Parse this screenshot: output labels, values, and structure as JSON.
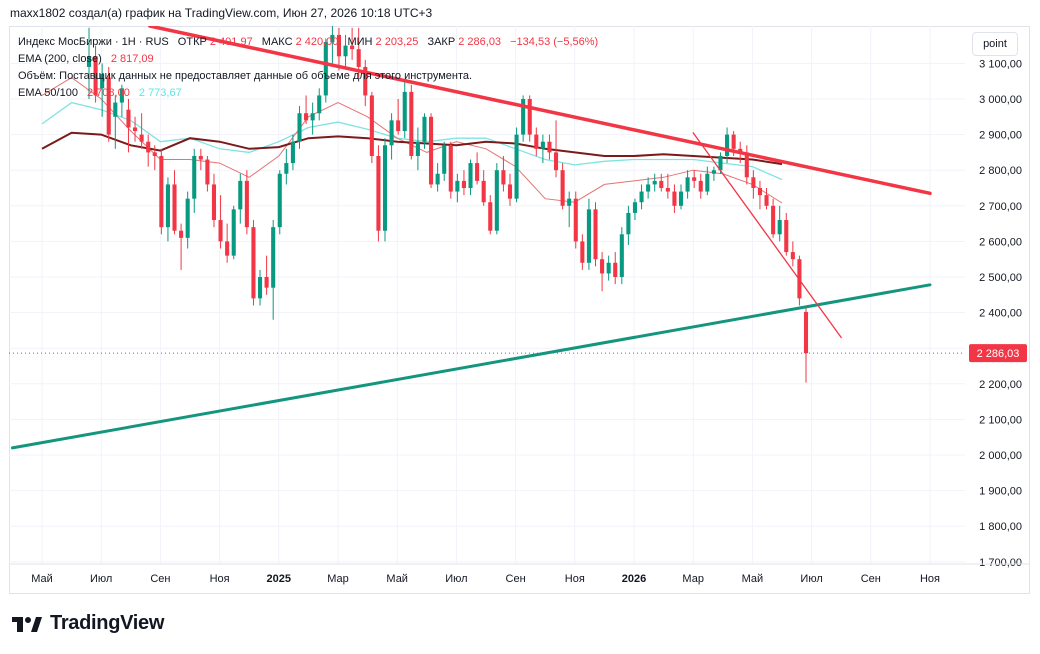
{
  "header": {
    "caption": "maxx1802 создал(а) график на TradingView.com, Июн 27, 2026 10:18 UTC+3"
  },
  "legend": {
    "symbol": "Индекс МосБиржи · 1Н · RUS",
    "open_label": "ОТКР",
    "open_value": "2 401,97",
    "high_label": "МАКС",
    "high_value": "2 420,00",
    "low_label": "МИН",
    "low_value": "2 203,25",
    "close_label": "ЗАКР",
    "close_value": "2 286,03",
    "change": "−134,53 (−5,56%)",
    "ema200_label": "EMA (200, close)",
    "ema200_value": "2 817,09",
    "volume_note": "Объём: Поставщик данных не предоставляет данные об объеме для этого инструмента.",
    "ema50_100_label": "EMA 50/100",
    "ema50_value": "2 708,00",
    "ema100_value": "2 773,67"
  },
  "toolbar": {
    "scale_button": "point"
  },
  "brand": {
    "name": "TradingView"
  },
  "chart_data": {
    "type": "candlestick",
    "y_axis": {
      "range": [
        1680,
        3170
      ],
      "ticks": [
        "1 700,00",
        "1 800,00",
        "1 900,00",
        "2 000,00",
        "2 100,00",
        "2 200,00",
        "2 300,00",
        "2 400,00",
        "2 500,00",
        "2 600,00",
        "2 700,00",
        "2 800,00",
        "2 900,00",
        "3 000,00",
        "3 100,00"
      ],
      "tick_values": [
        1700,
        1800,
        1900,
        2000,
        2100,
        2200,
        2300,
        2400,
        2500,
        2600,
        2700,
        2800,
        2900,
        3000,
        3100
      ]
    },
    "x_axis": {
      "labels": [
        "Май",
        "Июл",
        "Сен",
        "Ноя",
        "2025",
        "Мар",
        "Май",
        "Июл",
        "Сен",
        "Ноя",
        "2026",
        "Мар",
        "Май",
        "Июл",
        "Сен",
        "Ноя"
      ],
      "bold": [
        false,
        false,
        false,
        false,
        true,
        false,
        false,
        false,
        false,
        false,
        true,
        false,
        false,
        false,
        false,
        false
      ]
    },
    "last_price": 2286.03,
    "last_price_label": "2 286,03",
    "colors": {
      "up": "#089981",
      "down": "#f23645",
      "ema200": "#7b1a1a",
      "ema50": "#e57373",
      "ema100": "#7fe3e3",
      "trend_resistance": "#f23645",
      "trend_support": "#14957e",
      "trend_short": "#f23645"
    },
    "candles": [
      {
        "o": 3090,
        "h": 3200,
        "l": 3000,
        "c": 3120
      },
      {
        "o": 3120,
        "h": 3150,
        "l": 2990,
        "c": 3010
      },
      {
        "o": 3030,
        "h": 3100,
        "l": 2950,
        "c": 3070
      },
      {
        "o": 3060,
        "h": 3090,
        "l": 2880,
        "c": 2900
      },
      {
        "o": 2950,
        "h": 3010,
        "l": 2860,
        "c": 2990
      },
      {
        "o": 2990,
        "h": 3040,
        "l": 2950,
        "c": 3030
      },
      {
        "o": 2970,
        "h": 3000,
        "l": 2850,
        "c": 2920
      },
      {
        "o": 2920,
        "h": 2950,
        "l": 2880,
        "c": 2910
      },
      {
        "o": 2900,
        "h": 2960,
        "l": 2860,
        "c": 2880
      },
      {
        "o": 2880,
        "h": 2900,
        "l": 2810,
        "c": 2850
      },
      {
        "o": 2850,
        "h": 2870,
        "l": 2800,
        "c": 2840
      },
      {
        "o": 2840,
        "h": 2860,
        "l": 2620,
        "c": 2640
      },
      {
        "o": 2640,
        "h": 2780,
        "l": 2600,
        "c": 2760
      },
      {
        "o": 2760,
        "h": 2800,
        "l": 2620,
        "c": 2630
      },
      {
        "o": 2630,
        "h": 2650,
        "l": 2520,
        "c": 2610
      },
      {
        "o": 2610,
        "h": 2740,
        "l": 2580,
        "c": 2720
      },
      {
        "o": 2720,
        "h": 2860,
        "l": 2680,
        "c": 2840
      },
      {
        "o": 2840,
        "h": 2860,
        "l": 2800,
        "c": 2830
      },
      {
        "o": 2830,
        "h": 2840,
        "l": 2740,
        "c": 2760
      },
      {
        "o": 2760,
        "h": 2790,
        "l": 2640,
        "c": 2660
      },
      {
        "o": 2660,
        "h": 2730,
        "l": 2580,
        "c": 2600
      },
      {
        "o": 2600,
        "h": 2650,
        "l": 2540,
        "c": 2560
      },
      {
        "o": 2560,
        "h": 2700,
        "l": 2550,
        "c": 2690
      },
      {
        "o": 2690,
        "h": 2790,
        "l": 2650,
        "c": 2770
      },
      {
        "o": 2770,
        "h": 2800,
        "l": 2620,
        "c": 2640
      },
      {
        "o": 2640,
        "h": 2660,
        "l": 2420,
        "c": 2440
      },
      {
        "o": 2440,
        "h": 2520,
        "l": 2420,
        "c": 2500
      },
      {
        "o": 2500,
        "h": 2560,
        "l": 2450,
        "c": 2470
      },
      {
        "o": 2470,
        "h": 2660,
        "l": 2380,
        "c": 2640
      },
      {
        "o": 2640,
        "h": 2800,
        "l": 2620,
        "c": 2790
      },
      {
        "o": 2790,
        "h": 2860,
        "l": 2760,
        "c": 2820
      },
      {
        "o": 2820,
        "h": 2900,
        "l": 2800,
        "c": 2880
      },
      {
        "o": 2880,
        "h": 2980,
        "l": 2860,
        "c": 2960
      },
      {
        "o": 2960,
        "h": 3010,
        "l": 2930,
        "c": 2940
      },
      {
        "o": 2940,
        "h": 2990,
        "l": 2900,
        "c": 2960
      },
      {
        "o": 2960,
        "h": 3030,
        "l": 2940,
        "c": 3010
      },
      {
        "o": 3010,
        "h": 3170,
        "l": 2990,
        "c": 3160
      },
      {
        "o": 3160,
        "h": 3210,
        "l": 3100,
        "c": 3180
      },
      {
        "o": 3180,
        "h": 3200,
        "l": 3080,
        "c": 3120
      },
      {
        "o": 3120,
        "h": 3180,
        "l": 3090,
        "c": 3150
      },
      {
        "o": 3150,
        "h": 3200,
        "l": 3110,
        "c": 3140
      },
      {
        "o": 3140,
        "h": 3200,
        "l": 3060,
        "c": 3090
      },
      {
        "o": 3090,
        "h": 3110,
        "l": 2980,
        "c": 3010
      },
      {
        "o": 3010,
        "h": 3020,
        "l": 2820,
        "c": 2840
      },
      {
        "o": 2840,
        "h": 2870,
        "l": 2600,
        "c": 2630
      },
      {
        "o": 2630,
        "h": 2890,
        "l": 2600,
        "c": 2870
      },
      {
        "o": 2870,
        "h": 2960,
        "l": 2830,
        "c": 2940
      },
      {
        "o": 2940,
        "h": 3000,
        "l": 2900,
        "c": 2910
      },
      {
        "o": 2910,
        "h": 3050,
        "l": 2890,
        "c": 3020
      },
      {
        "o": 3020,
        "h": 3040,
        "l": 2830,
        "c": 2840
      },
      {
        "o": 2840,
        "h": 2920,
        "l": 2800,
        "c": 2880
      },
      {
        "o": 2880,
        "h": 2960,
        "l": 2860,
        "c": 2950
      },
      {
        "o": 2950,
        "h": 2960,
        "l": 2750,
        "c": 2760
      },
      {
        "o": 2760,
        "h": 2820,
        "l": 2740,
        "c": 2790
      },
      {
        "o": 2790,
        "h": 2880,
        "l": 2770,
        "c": 2870
      },
      {
        "o": 2870,
        "h": 2880,
        "l": 2720,
        "c": 2740
      },
      {
        "o": 2740,
        "h": 2790,
        "l": 2710,
        "c": 2770
      },
      {
        "o": 2770,
        "h": 2800,
        "l": 2730,
        "c": 2750
      },
      {
        "o": 2750,
        "h": 2830,
        "l": 2730,
        "c": 2820
      },
      {
        "o": 2820,
        "h": 2850,
        "l": 2760,
        "c": 2770
      },
      {
        "o": 2770,
        "h": 2800,
        "l": 2700,
        "c": 2710
      },
      {
        "o": 2710,
        "h": 2730,
        "l": 2620,
        "c": 2630
      },
      {
        "o": 2630,
        "h": 2820,
        "l": 2620,
        "c": 2800
      },
      {
        "o": 2800,
        "h": 2840,
        "l": 2740,
        "c": 2760
      },
      {
        "o": 2760,
        "h": 2790,
        "l": 2700,
        "c": 2720
      },
      {
        "o": 2720,
        "h": 2920,
        "l": 2710,
        "c": 2900
      },
      {
        "o": 2900,
        "h": 3010,
        "l": 2880,
        "c": 3000
      },
      {
        "o": 3000,
        "h": 3010,
        "l": 2880,
        "c": 2900
      },
      {
        "o": 2900,
        "h": 2920,
        "l": 2840,
        "c": 2860
      },
      {
        "o": 2860,
        "h": 2900,
        "l": 2820,
        "c": 2880
      },
      {
        "o": 2880,
        "h": 2900,
        "l": 2830,
        "c": 2850
      },
      {
        "o": 2850,
        "h": 2940,
        "l": 2780,
        "c": 2800
      },
      {
        "o": 2800,
        "h": 2820,
        "l": 2690,
        "c": 2700
      },
      {
        "o": 2700,
        "h": 2740,
        "l": 2640,
        "c": 2720
      },
      {
        "o": 2720,
        "h": 2740,
        "l": 2580,
        "c": 2600
      },
      {
        "o": 2600,
        "h": 2620,
        "l": 2520,
        "c": 2540
      },
      {
        "o": 2540,
        "h": 2720,
        "l": 2520,
        "c": 2690
      },
      {
        "o": 2690,
        "h": 2710,
        "l": 2530,
        "c": 2550
      },
      {
        "o": 2550,
        "h": 2570,
        "l": 2460,
        "c": 2510
      },
      {
        "o": 2510,
        "h": 2560,
        "l": 2490,
        "c": 2540
      },
      {
        "o": 2540,
        "h": 2570,
        "l": 2480,
        "c": 2500
      },
      {
        "o": 2500,
        "h": 2640,
        "l": 2480,
        "c": 2620
      },
      {
        "o": 2620,
        "h": 2700,
        "l": 2590,
        "c": 2680
      },
      {
        "o": 2680,
        "h": 2720,
        "l": 2660,
        "c": 2710
      },
      {
        "o": 2710,
        "h": 2760,
        "l": 2690,
        "c": 2740
      },
      {
        "o": 2740,
        "h": 2780,
        "l": 2720,
        "c": 2760
      },
      {
        "o": 2760,
        "h": 2790,
        "l": 2740,
        "c": 2770
      },
      {
        "o": 2770,
        "h": 2790,
        "l": 2740,
        "c": 2750
      },
      {
        "o": 2750,
        "h": 2790,
        "l": 2720,
        "c": 2740
      },
      {
        "o": 2740,
        "h": 2760,
        "l": 2680,
        "c": 2700
      },
      {
        "o": 2700,
        "h": 2760,
        "l": 2690,
        "c": 2740
      },
      {
        "o": 2740,
        "h": 2800,
        "l": 2720,
        "c": 2780
      },
      {
        "o": 2780,
        "h": 2800,
        "l": 2750,
        "c": 2770
      },
      {
        "o": 2770,
        "h": 2790,
        "l": 2720,
        "c": 2740
      },
      {
        "o": 2740,
        "h": 2810,
        "l": 2730,
        "c": 2790
      },
      {
        "o": 2790,
        "h": 2810,
        "l": 2770,
        "c": 2800
      },
      {
        "o": 2800,
        "h": 2850,
        "l": 2790,
        "c": 2840
      },
      {
        "o": 2840,
        "h": 2920,
        "l": 2820,
        "c": 2900
      },
      {
        "o": 2900,
        "h": 2910,
        "l": 2840,
        "c": 2860
      },
      {
        "o": 2860,
        "h": 2880,
        "l": 2820,
        "c": 2850
      },
      {
        "o": 2850,
        "h": 2870,
        "l": 2760,
        "c": 2780
      },
      {
        "o": 2780,
        "h": 2800,
        "l": 2720,
        "c": 2750
      },
      {
        "o": 2750,
        "h": 2770,
        "l": 2690,
        "c": 2730
      },
      {
        "o": 2730,
        "h": 2750,
        "l": 2690,
        "c": 2700
      },
      {
        "o": 2700,
        "h": 2720,
        "l": 2610,
        "c": 2620
      },
      {
        "o": 2620,
        "h": 2700,
        "l": 2600,
        "c": 2660
      },
      {
        "o": 2660,
        "h": 2680,
        "l": 2560,
        "c": 2570
      },
      {
        "o": 2570,
        "h": 2600,
        "l": 2530,
        "c": 2550
      },
      {
        "o": 2550,
        "h": 2560,
        "l": 2420,
        "c": 2440
      },
      {
        "o": 2401.97,
        "h": 2420,
        "l": 2203.25,
        "c": 2286.03
      }
    ],
    "ema200": [
      [
        0,
        2860
      ],
      [
        0.5,
        2905
      ],
      [
        1,
        2900
      ],
      [
        1.5,
        2870
      ],
      [
        2,
        2855
      ],
      [
        2.5,
        2890
      ],
      [
        3,
        2880
      ],
      [
        3.5,
        2860
      ],
      [
        4,
        2865
      ],
      [
        4.5,
        2890
      ],
      [
        5,
        2895
      ],
      [
        5.5,
        2890
      ],
      [
        6,
        2880
      ],
      [
        6.5,
        2875
      ],
      [
        7,
        2870
      ],
      [
        7.5,
        2880
      ],
      [
        8,
        2875
      ],
      [
        8.5,
        2860
      ],
      [
        9,
        2850
      ],
      [
        9.5,
        2840
      ],
      [
        10,
        2840
      ],
      [
        10.5,
        2845
      ],
      [
        11,
        2840
      ],
      [
        11.5,
        2835
      ],
      [
        12,
        2830
      ],
      [
        12.5,
        2817
      ]
    ],
    "ema100": [
      [
        0,
        2930
      ],
      [
        0.5,
        2990
      ],
      [
        1,
        2970
      ],
      [
        1.5,
        2940
      ],
      [
        2,
        2880
      ],
      [
        2.5,
        2890
      ],
      [
        3,
        2860
      ],
      [
        3.5,
        2850
      ],
      [
        4,
        2880
      ],
      [
        4.5,
        2920
      ],
      [
        5,
        2935
      ],
      [
        5.5,
        2915
      ],
      [
        6,
        2890
      ],
      [
        6.5,
        2880
      ],
      [
        7,
        2890
      ],
      [
        7.5,
        2890
      ],
      [
        8,
        2860
      ],
      [
        8.5,
        2830
      ],
      [
        9,
        2815
      ],
      [
        9.5,
        2825
      ],
      [
        10,
        2830
      ],
      [
        10.5,
        2830
      ],
      [
        11,
        2830
      ],
      [
        11.5,
        2820
      ],
      [
        12,
        2810
      ],
      [
        12.5,
        2773.67
      ]
    ],
    "ema50": [
      [
        0,
        3010
      ],
      [
        0.5,
        3060
      ],
      [
        1,
        3000
      ],
      [
        1.5,
        2910
      ],
      [
        2,
        2830
      ],
      [
        2.5,
        2830
      ],
      [
        3,
        2820
      ],
      [
        3.5,
        2780
      ],
      [
        4,
        2840
      ],
      [
        4.5,
        2950
      ],
      [
        5,
        2990
      ],
      [
        5.5,
        2950
      ],
      [
        6,
        2890
      ],
      [
        6.5,
        2850
      ],
      [
        7,
        2880
      ],
      [
        7.5,
        2860
      ],
      [
        8,
        2810
      ],
      [
        8.5,
        2720
      ],
      [
        9,
        2710
      ],
      [
        9.5,
        2760
      ],
      [
        10,
        2770
      ],
      [
        10.5,
        2780
      ],
      [
        11,
        2800
      ],
      [
        11.5,
        2790
      ],
      [
        12,
        2760
      ],
      [
        12.5,
        2708
      ]
    ],
    "trendlines": [
      {
        "name": "resistance",
        "from": [
          "Май 2024",
          3270
        ],
        "to": [
          "Ноя 2026",
          2735
        ]
      },
      {
        "name": "support",
        "from": [
          "Апр 2024",
          2020
        ],
        "to": [
          "Ноя 2026",
          2478
        ]
      },
      {
        "name": "short-term",
        "from": [
          "Мар 2026",
          2905
        ],
        "to": [
          "Авг 2026",
          2330
        ]
      }
    ],
    "grid": true
  }
}
